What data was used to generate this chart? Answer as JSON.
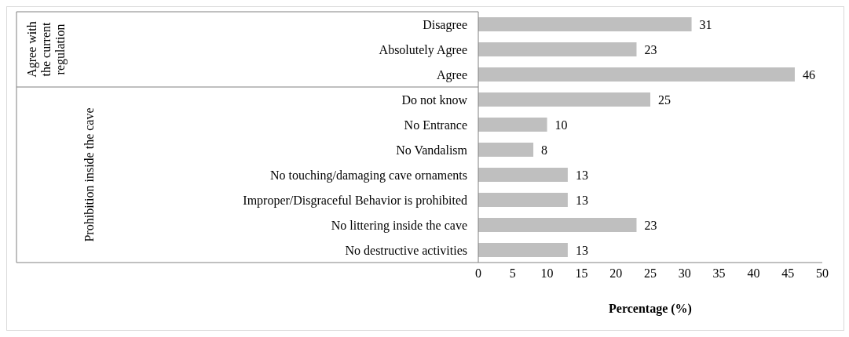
{
  "chart_data": {
    "type": "bar",
    "orientation": "horizontal",
    "categories": [
      "Disagree",
      "Absolutely Agree",
      "Agree",
      "Do not know",
      "No Entrance",
      "No Vandalism",
      "No touching/damaging cave ornaments",
      "Improper/Disgraceful Behavior is prohibited",
      "No littering inside the cave",
      "No destructive activities"
    ],
    "values": [
      31,
      23,
      46,
      25,
      10,
      8,
      13,
      13,
      23,
      13
    ],
    "color": "#bfbfbf",
    "xlim": [
      0,
      50
    ],
    "xticks": [
      0,
      5,
      10,
      15,
      20,
      25,
      30,
      35,
      40,
      45,
      50
    ],
    "xlabel": "Percentage (%)",
    "data_labels": true,
    "annotations": [
      "Agree with the current regulation",
      "Prohibition inside the cave"
    ]
  }
}
